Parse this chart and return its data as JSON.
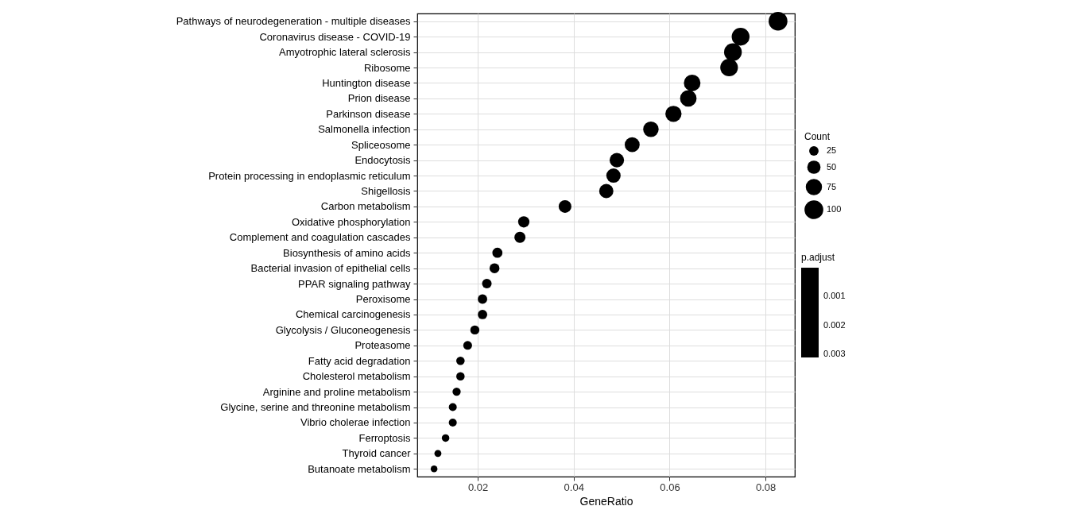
{
  "chart_data": {
    "type": "bubble",
    "xlabel": "GeneRatio",
    "legend_title": "Count",
    "clabel": "p.adjust",
    "annotations": [
      "0.001",
      "0.002",
      "0.003"
    ],
    "categories": [
      "Pathways of neurodegeneration - multiple diseases",
      "Coronavirus disease - COVID-19",
      "Amyotrophic lateral sclerosis",
      "Ribosome",
      "Huntington disease",
      "Prion disease",
      "Parkinson disease",
      "Salmonella infection",
      "Spliceosome",
      "Endocytosis",
      "Protein processing in endoplasmic reticulum",
      "Shigellosis",
      "Carbon metabolism",
      "Oxidative phosphorylation",
      "Complement and coagulation cascades",
      "Biosynthesis of amino acids",
      "Bacterial invasion of epithelial cells",
      "PPAR signaling pathway",
      "Peroxisome",
      "Chemical carcinogenesis",
      "Glycolysis / Gluconeogenesis",
      "Proteasome",
      "Fatty acid degradation",
      "Cholesterol metabolism",
      "Arginine and proline metabolism",
      "Glycine, serine and threonine metabolism",
      "Vibrio cholerae infection",
      "Ferroptosis",
      "Thyroid cancer",
      "Butanoate metabolism"
    ],
    "orientation": "horizontal",
    "values": [
      0.0826,
      0.0748,
      0.0732,
      0.0724,
      0.0647,
      0.0639,
      0.0608,
      0.0561,
      0.0522,
      0.049,
      0.0483,
      0.0468,
      0.0382,
      0.0296,
      0.0288,
      0.0241,
      0.0235,
      0.0219,
      0.021,
      0.021,
      0.0194,
      0.0179,
      0.0164,
      0.0164,
      0.0156,
      0.0148,
      0.0148,
      0.0133,
      0.0117,
      0.0109
    ],
    "sizes": [
      100,
      90,
      89,
      88,
      78,
      77,
      74,
      68,
      63,
      59,
      58,
      57,
      46,
      36,
      35,
      29,
      28,
      26,
      25,
      25,
      23,
      22,
      20,
      20,
      19,
      18,
      18,
      16,
      14,
      13
    ],
    "size_legend": [
      25,
      50,
      75,
      100
    ],
    "color": "#000000",
    "xlim": [
      0.0074,
      0.0861
    ],
    "xticks": [
      0.02,
      0.04,
      0.06,
      0.08
    ],
    "grid": true,
    "marker": "circle"
  }
}
